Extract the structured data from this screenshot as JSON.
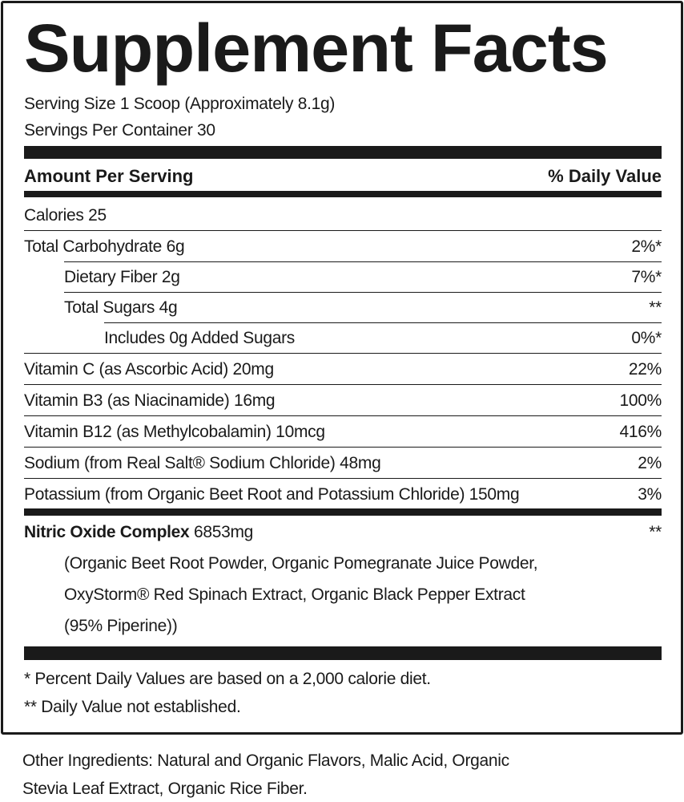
{
  "title": "Supplement Facts",
  "serving_size": "Serving Size 1 Scoop (Approximately 8.1g)",
  "servings_per_container": "Servings Per Container 30",
  "header": {
    "amount": "Amount Per Serving",
    "daily_value": "% Daily Value"
  },
  "rows": [
    {
      "label": "Calories 25",
      "dv": "",
      "indent": 0
    },
    {
      "label": "Total Carbohydrate 6g",
      "dv": "2%*",
      "indent": 0
    },
    {
      "label": "Dietary Fiber 2g",
      "dv": "7%*",
      "indent": 1
    },
    {
      "label": "Total Sugars 4g",
      "dv": "**",
      "indent": 1
    },
    {
      "label": "Includes 0g Added Sugars",
      "dv": "0%*",
      "indent": 2
    },
    {
      "label": "Vitamin C (as Ascorbic Acid) 20mg",
      "dv": "22%",
      "indent": 0
    },
    {
      "label": "Vitamin B3 (as Niacinamide) 16mg",
      "dv": "100%",
      "indent": 0
    },
    {
      "label": "Vitamin B12 (as Methylcobalamin) 10mcg",
      "dv": "416%",
      "indent": 0
    },
    {
      "label": "Sodium (from Real Salt® Sodium Chloride) 48mg",
      "dv": "2%",
      "indent": 0
    },
    {
      "label": "Potassium (from Organic Beet Root and Potassium Chloride) 150mg",
      "dv": "3%",
      "indent": 0
    }
  ],
  "blend": {
    "name": "Nitric Oxide Complex",
    "amount": "6853mg",
    "dv": "**",
    "ingredients": [
      "(Organic Beet Root Powder, Organic Pomegranate Juice Powder,",
      "OxyStorm® Red Spinach Extract, Organic Black Pepper Extract",
      "(95% Piperine))"
    ]
  },
  "footnotes": [
    "* Percent Daily Values are based on a 2,000 calorie diet.",
    "** Daily Value not established."
  ],
  "other_ingredients": [
    "Other Ingredients: Natural and Organic Flavors, Malic Acid, Organic",
    "Stevia Leaf Extract, Organic Rice Fiber."
  ]
}
